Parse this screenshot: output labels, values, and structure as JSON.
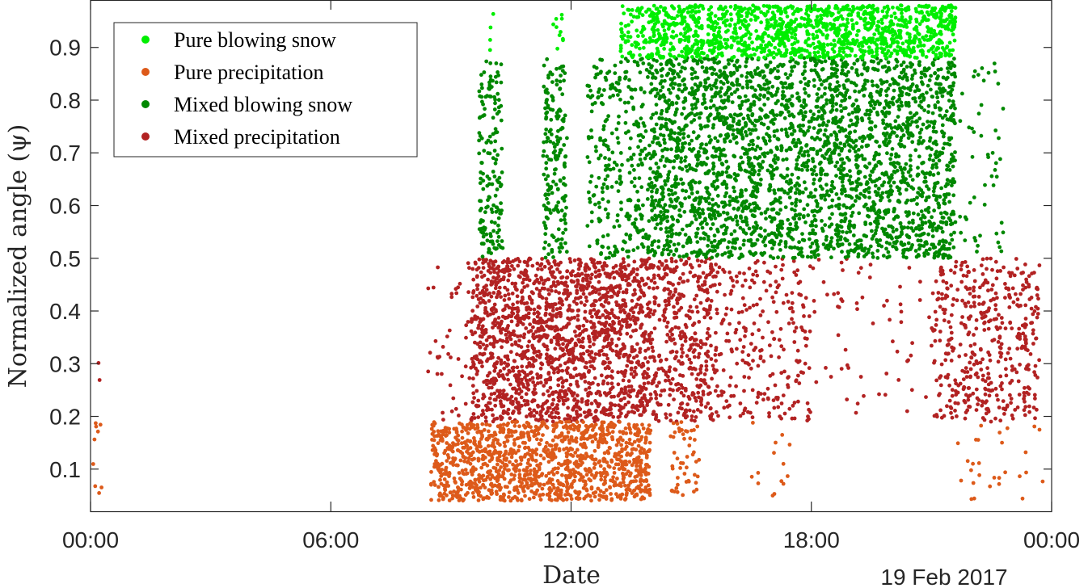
{
  "chart_data": {
    "type": "scatter",
    "xlabel": "Date",
    "ylabel": "Normalized angle (ψ)",
    "date_note": "19 Feb 2017",
    "x_tick_labels": [
      "00:00",
      "06:00",
      "12:00",
      "18:00",
      "00:00"
    ],
    "x_ticks_hours": [
      0,
      6,
      12,
      18,
      24
    ],
    "xlim_hours": [
      0,
      24
    ],
    "ylim": [
      0.02,
      0.99
    ],
    "y_ticks": [
      0.1,
      0.2,
      0.3,
      0.4,
      0.5,
      0.6,
      0.7,
      0.8,
      0.9
    ],
    "legend_position": "top-left",
    "series": [
      {
        "name": "Pure blowing snow",
        "color": "#00ee00",
        "y_range": [
          0.88,
          0.98
        ],
        "clusters": [
          {
            "x_start": 13.2,
            "x_end": 14.0,
            "count": 70
          },
          {
            "x_start": 14.0,
            "x_end": 15.0,
            "count": 170
          },
          {
            "x_start": 15.0,
            "x_end": 21.6,
            "count": 1100
          },
          {
            "x_start": 9.9,
            "x_end": 10.1,
            "count": 4
          },
          {
            "x_start": 11.5,
            "x_end": 11.8,
            "count": 10
          }
        ]
      },
      {
        "name": "Pure precipitation",
        "color": "#dd5a1a",
        "y_range": [
          0.04,
          0.19
        ],
        "clusters": [
          {
            "x_start": 8.5,
            "x_end": 14.0,
            "count": 1250
          },
          {
            "x_start": 14.4,
            "x_end": 15.2,
            "count": 50
          },
          {
            "x_start": 16.5,
            "x_end": 17.6,
            "count": 14
          },
          {
            "x_start": 21.6,
            "x_end": 23.8,
            "count": 28
          },
          {
            "x_start": 0.0,
            "x_end": 0.3,
            "count": 10
          }
        ]
      },
      {
        "name": "Mixed blowing snow",
        "color": "#008800",
        "y_range": [
          0.5,
          0.88
        ],
        "clusters": [
          {
            "x_start": 9.7,
            "x_end": 10.3,
            "count": 160
          },
          {
            "x_start": 11.3,
            "x_end": 11.9,
            "count": 180
          },
          {
            "x_start": 12.4,
            "x_end": 14.0,
            "count": 300
          },
          {
            "x_start": 14.0,
            "x_end": 21.6,
            "count": 2900
          },
          {
            "x_start": 21.6,
            "x_end": 22.8,
            "count": 50
          }
        ]
      },
      {
        "name": "Mixed precipitation",
        "color": "#b22222",
        "y_range": [
          0.19,
          0.5
        ],
        "clusters": [
          {
            "x_start": 9.5,
            "x_end": 14.0,
            "count": 1700
          },
          {
            "x_start": 14.0,
            "x_end": 15.5,
            "count": 380
          },
          {
            "x_start": 15.5,
            "x_end": 18.0,
            "count": 260
          },
          {
            "x_start": 18.0,
            "x_end": 21.0,
            "count": 60
          },
          {
            "x_start": 21.0,
            "x_end": 23.7,
            "count": 450
          },
          {
            "x_start": 8.4,
            "x_end": 9.5,
            "count": 40
          },
          {
            "x_start": 0.2,
            "x_end": 0.3,
            "count": 2
          }
        ]
      }
    ]
  }
}
